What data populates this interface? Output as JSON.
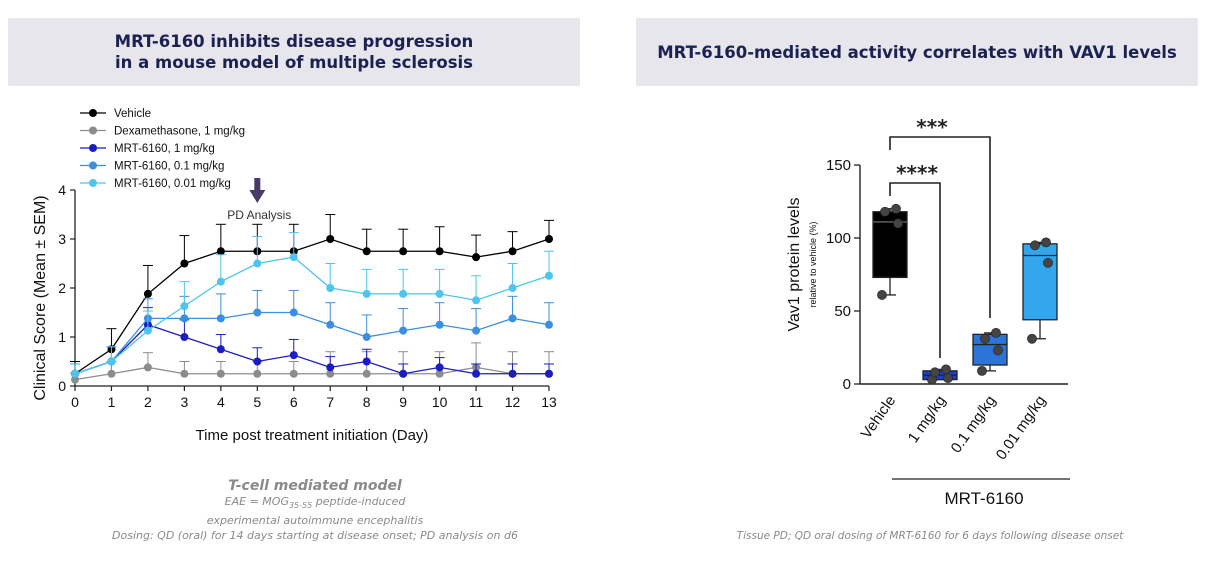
{
  "left_header": {
    "line1": "MRT-6160 inhibits disease progression",
    "line2": "in a mouse model of multiple sclerosis"
  },
  "right_header": {
    "title": "MRT-6160-mediated activity correlates with VAV1 levels"
  },
  "left_caption": {
    "title": "T-cell mediated model",
    "line1_pre": "EAE = MOG",
    "line1_sub": "35-55",
    "line1_post": " peptide-induced",
    "line2": "experimental autoimmune encephalitis",
    "line3": "Dosing: QD (oral) for 14 days starting at disease onset; PD analysis on d6"
  },
  "right_caption": {
    "text": "Tissue PD; QD oral dosing of MRT-6160 for 6 days following disease onset"
  },
  "colors": {
    "vehicle": "#000000",
    "dex": "#8c8c8c",
    "mrt_1": "#1c1cc4",
    "mrt_01": "#3a8fe0",
    "mrt_001": "#4fc4ec",
    "header_bg": "#e6e6ec",
    "arrow": "#4a3a6a"
  },
  "chart_data": [
    {
      "type": "line",
      "title": "",
      "xlabel": "Time post treatment initiation (Day)",
      "ylabel": "Clinical Score (Mean ± SEM)",
      "xlim": [
        0,
        13
      ],
      "ylim": [
        0,
        4
      ],
      "xticks": [
        0,
        1,
        2,
        3,
        4,
        5,
        6,
        7,
        8,
        9,
        10,
        11,
        12,
        13
      ],
      "yticks": [
        0,
        1,
        2,
        3,
        4
      ],
      "x": [
        0,
        1,
        2,
        3,
        4,
        5,
        6,
        7,
        8,
        9,
        10,
        11,
        12,
        13
      ],
      "annotation": {
        "text": "PD Analysis",
        "x": 5
      },
      "series": [
        {
          "name": "Vehicle",
          "color": "#000000",
          "values": [
            0.25,
            0.75,
            1.88,
            2.5,
            2.75,
            2.75,
            2.75,
            3.0,
            2.75,
            2.75,
            2.75,
            2.63,
            2.75,
            3.0
          ],
          "err": [
            0.25,
            0.42,
            0.58,
            0.57,
            0.55,
            0.55,
            0.55,
            0.5,
            0.45,
            0.45,
            0.5,
            0.45,
            0.4,
            0.38
          ]
        },
        {
          "name": "Dexamethasone, 1 mg/kg",
          "color": "#8c8c8c",
          "values": [
            0.13,
            0.25,
            0.38,
            0.25,
            0.25,
            0.25,
            0.25,
            0.25,
            0.25,
            0.25,
            0.25,
            0.38,
            0.25,
            0.25
          ],
          "err": [
            0.13,
            0.25,
            0.3,
            0.25,
            0.25,
            0.25,
            0.25,
            0.45,
            0.45,
            0.45,
            0.45,
            0.5,
            0.45,
            0.45
          ]
        },
        {
          "name": "MRT-6160, 1 mg/kg",
          "color": "#1c1cc4",
          "values": [
            0.25,
            0.5,
            1.25,
            1.0,
            0.75,
            0.5,
            0.63,
            0.38,
            0.5,
            0.25,
            0.38,
            0.25,
            0.25,
            0.25
          ],
          "err": [
            0.2,
            0.3,
            0.35,
            0.35,
            0.3,
            0.28,
            0.32,
            0.22,
            0.25,
            0.2,
            0.2,
            0.2,
            0.2,
            0.2
          ]
        },
        {
          "name": "MRT-6160, 0.1 mg/kg",
          "color": "#3a8fe0",
          "values": [
            0.25,
            0.5,
            1.38,
            1.38,
            1.38,
            1.5,
            1.5,
            1.25,
            1.0,
            1.13,
            1.25,
            1.13,
            1.38,
            1.25
          ],
          "err": [
            0.2,
            0.3,
            0.4,
            0.45,
            0.5,
            0.45,
            0.45,
            0.45,
            0.45,
            0.45,
            0.45,
            0.45,
            0.45,
            0.45
          ]
        },
        {
          "name": "MRT-6160, 0.01 mg/kg",
          "color": "#4fc4ec",
          "values": [
            0.25,
            0.5,
            1.13,
            1.63,
            2.13,
            2.5,
            2.63,
            2.0,
            1.88,
            1.88,
            1.88,
            1.75,
            2.0,
            2.25
          ],
          "err": [
            0.2,
            0.3,
            0.4,
            0.5,
            0.55,
            0.55,
            0.5,
            0.5,
            0.5,
            0.5,
            0.5,
            0.5,
            0.5,
            0.5
          ]
        }
      ]
    },
    {
      "type": "box",
      "ylabel": "Vav1 protein levels",
      "ylabel_sub": "relative to vehicle (%)",
      "ylim": [
        0,
        150
      ],
      "yticks": [
        0,
        50,
        100,
        150
      ],
      "group_label": "MRT-6160",
      "groups": [
        {
          "name": "Vehicle",
          "color": "#000000",
          "min": 61,
          "q1": 73,
          "median": 111,
          "q3": 118,
          "max": 120,
          "points": [
            61,
            110,
            118,
            120
          ]
        },
        {
          "name": "1 mg/kg",
          "color": "#1c3fd0",
          "min": 3,
          "q1": 3,
          "median": 6,
          "q3": 9,
          "max": 10,
          "points": [
            3,
            4,
            8,
            10
          ]
        },
        {
          "name": "0.1 mg/kg",
          "color": "#2c74d8",
          "min": 9,
          "q1": 13,
          "median": 27,
          "q3": 34,
          "max": 35,
          "points": [
            9,
            23,
            31,
            35
          ]
        },
        {
          "name": "0.01 mg/kg",
          "color": "#33a6ee",
          "min": 31,
          "q1": 44,
          "median": 88,
          "q3": 96,
          "max": 97,
          "points": [
            31,
            83,
            95,
            97
          ]
        }
      ],
      "significance": [
        {
          "label": "***",
          "from": 0,
          "to": 2
        },
        {
          "label": "****",
          "from": 0,
          "to": 1
        }
      ]
    }
  ]
}
